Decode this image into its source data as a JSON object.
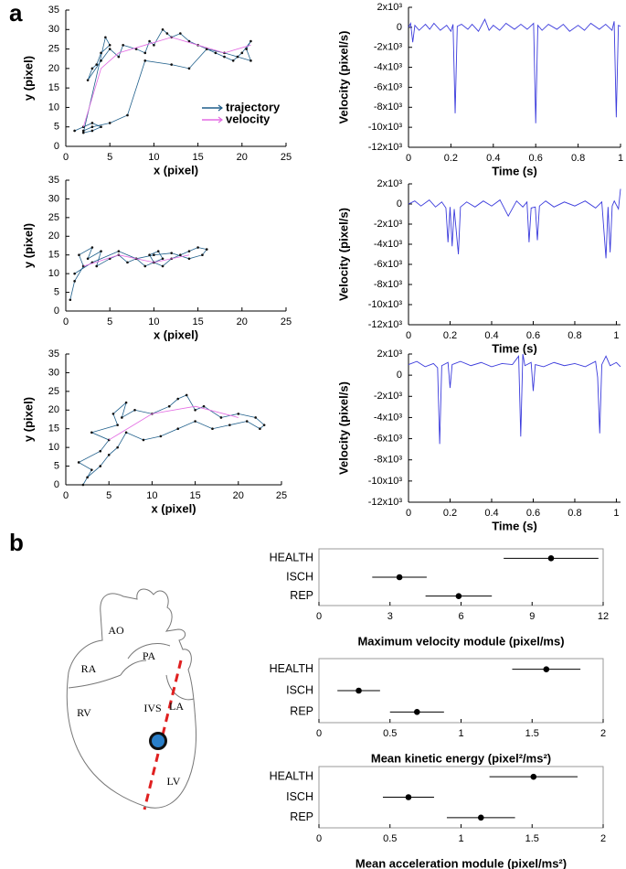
{
  "figure": {
    "panel_labels": [
      "a",
      "b"
    ],
    "heart_labels": [
      "AO",
      "PA",
      "RA",
      "RV",
      "IVS",
      "LA",
      "LV"
    ]
  },
  "chart_data": [
    {
      "type": "line",
      "xlabel": "x (pixel)",
      "ylabel": "y (pixel)",
      "xlim": [
        0,
        25
      ],
      "ylim": [
        0,
        35
      ],
      "xticks": [
        0,
        5,
        10,
        15,
        20,
        25
      ],
      "yticks": [
        0,
        5,
        10,
        15,
        20,
        25,
        30,
        35
      ],
      "markers": true,
      "legend": "lower right",
      "series": [
        {
          "name": "trajectory",
          "color": "#1f5f8b",
          "x": [
            1,
            2,
            3,
            4,
            3,
            2,
            4.5,
            5,
            4,
            3.5,
            3,
            2.5,
            4,
            5,
            6,
            6.5,
            8,
            9,
            9.5,
            10,
            11,
            11.5,
            12,
            13,
            14,
            15,
            16,
            17,
            18,
            19,
            20,
            21,
            20.5,
            21,
            19.5,
            18,
            16,
            14,
            12,
            9,
            7,
            5,
            3,
            2
          ],
          "values": [
            4,
            5,
            6,
            5,
            4,
            3.5,
            28,
            26,
            24,
            21,
            20,
            17,
            22,
            25,
            23,
            26,
            25,
            24,
            27,
            26,
            30,
            29,
            28,
            29,
            27,
            26,
            25,
            24,
            23,
            22,
            24,
            27,
            25,
            22,
            23,
            24,
            25,
            20,
            21,
            22,
            8,
            6,
            5,
            4
          ]
        },
        {
          "name": "velocity",
          "color": "#e36be3",
          "x": [
            2,
            4,
            6,
            9,
            12,
            15,
            18,
            21
          ],
          "values": [
            5,
            20,
            24,
            26,
            28,
            26,
            24,
            26
          ]
        }
      ]
    },
    {
      "type": "line",
      "xlabel": "Time (s)",
      "ylabel": "Velocity (pixel/s)",
      "xlim": [
        0,
        1
      ],
      "ylim": [
        -12000,
        2000
      ],
      "xticks": [
        0,
        0.2,
        0.4,
        0.6,
        0.8,
        1
      ],
      "yticks": [
        {
          "value": 2000,
          "label": "2x10³"
        },
        0,
        {
          "value": -2000,
          "label": "-2x10³"
        },
        {
          "value": -4000,
          "label": "-4x10³"
        },
        {
          "value": -6000,
          "label": "-6x10³"
        },
        {
          "value": -8000,
          "label": "-8x10³"
        },
        {
          "value": -10000,
          "label": "-10x10³"
        },
        {
          "value": -12000,
          "label": "-12x10³"
        }
      ],
      "series": [
        {
          "color": "#3b3bdc",
          "x": [
            0,
            0.01,
            0.02,
            0.03,
            0.05,
            0.08,
            0.1,
            0.12,
            0.15,
            0.18,
            0.2,
            0.21,
            0.22,
            0.23,
            0.25,
            0.28,
            0.3,
            0.33,
            0.36,
            0.38,
            0.4,
            0.43,
            0.46,
            0.5,
            0.53,
            0.56,
            0.59,
            0.6,
            0.61,
            0.63,
            0.66,
            0.7,
            0.73,
            0.76,
            0.8,
            0.83,
            0.86,
            0.9,
            0.93,
            0.96,
            0.97,
            0.98,
            0.99,
            1
          ],
          "values": [
            0,
            400,
            -1500,
            200,
            -300,
            300,
            -200,
            400,
            -300,
            200,
            -400,
            300,
            -8600,
            100,
            300,
            -200,
            300,
            -400,
            800,
            -300,
            200,
            -300,
            400,
            -200,
            300,
            -200,
            400,
            -9600,
            200,
            -300,
            300,
            -200,
            300,
            -400,
            200,
            -300,
            400,
            -200,
            300,
            -300,
            600,
            -9000,
            200,
            100
          ]
        }
      ]
    },
    {
      "type": "line",
      "xlabel": "x (pixel)",
      "ylabel": "y (pixel)",
      "xlim": [
        0,
        25
      ],
      "ylim": [
        0,
        35
      ],
      "xticks": [
        0,
        5,
        10,
        15,
        20,
        25
      ],
      "yticks": [
        0,
        5,
        10,
        15,
        20,
        25,
        30,
        35
      ],
      "markers": true,
      "series": [
        {
          "color": "#1f5f8b",
          "x": [
            0.5,
            1,
            2,
            1.5,
            3,
            2.5,
            4,
            3.5,
            5,
            6,
            7,
            8,
            9,
            10,
            11,
            10.5,
            9.5,
            10,
            11,
            12,
            13,
            14,
            15,
            16,
            15.5,
            14,
            12,
            10,
            8,
            6,
            3,
            1
          ],
          "values": [
            3,
            8,
            12,
            15,
            17,
            14,
            16,
            12,
            14,
            15,
            13,
            14,
            12,
            13,
            14,
            16,
            15,
            13,
            12,
            14,
            15,
            16,
            17,
            16.5,
            15,
            14,
            15.5,
            15,
            14,
            16,
            13,
            10
          ]
        },
        {
          "color": "#e36be3",
          "x": [
            2,
            6,
            10,
            14
          ],
          "values": [
            12,
            15,
            13,
            15
          ]
        }
      ]
    },
    {
      "type": "line",
      "xlabel": "Time (s)",
      "ylabel": "Velocity (pixel/s)",
      "xlim": [
        0,
        1.02
      ],
      "ylim": [
        -12000,
        2000
      ],
      "xticks": [
        0,
        0.2,
        0.4,
        0.6,
        0.8,
        1
      ],
      "yticks": [
        {
          "value": 2000,
          "label": "2x10³"
        },
        0,
        {
          "value": -2000,
          "label": "-2x10³"
        },
        {
          "value": -4000,
          "label": "-4x10³"
        },
        {
          "value": -6000,
          "label": "-6x10³"
        },
        {
          "value": -8000,
          "label": "-8x10³"
        },
        {
          "value": -10000,
          "label": "-10x10³"
        },
        {
          "value": -12000,
          "label": "-12x10³"
        }
      ],
      "series": [
        {
          "color": "#3b3bdc",
          "x": [
            0,
            0.03,
            0.06,
            0.1,
            0.13,
            0.16,
            0.18,
            0.19,
            0.2,
            0.21,
            0.22,
            0.24,
            0.25,
            0.28,
            0.32,
            0.36,
            0.4,
            0.44,
            0.48,
            0.52,
            0.55,
            0.57,
            0.58,
            0.59,
            0.61,
            0.62,
            0.63,
            0.66,
            0.7,
            0.75,
            0.8,
            0.85,
            0.9,
            0.93,
            0.95,
            0.96,
            0.97,
            0.98,
            0.99,
            1.01,
            1.02
          ],
          "values": [
            0,
            300,
            -200,
            400,
            -300,
            200,
            -400,
            -3800,
            -300,
            -4200,
            -500,
            -5000,
            -300,
            200,
            -300,
            300,
            -200,
            400,
            -1200,
            300,
            -300,
            200,
            -3800,
            -400,
            -300,
            -3600,
            -200,
            300,
            -300,
            200,
            -200,
            300,
            -400,
            200,
            -5400,
            -300,
            -4800,
            -200,
            300,
            -500,
            1500
          ]
        }
      ]
    },
    {
      "type": "line",
      "xlabel": "x (pixel)",
      "ylabel": "y (pixel)",
      "xlim": [
        0,
        25
      ],
      "ylim": [
        0,
        35
      ],
      "xticks": [
        0,
        5,
        10,
        15,
        20,
        25
      ],
      "yticks": [
        0,
        5,
        10,
        15,
        20,
        25,
        30,
        35
      ],
      "markers": true,
      "series": [
        {
          "color": "#1f5f8b",
          "x": [
            2,
            3,
            1.5,
            4,
            5,
            3,
            6,
            5.5,
            7,
            6.5,
            8,
            10,
            12,
            13,
            14,
            15,
            16,
            18,
            20,
            22,
            23,
            22.5,
            21,
            19,
            17,
            15,
            13,
            11,
            9,
            7,
            6,
            5,
            4,
            2.5
          ],
          "values": [
            0,
            4,
            6,
            9,
            12,
            14,
            16,
            19,
            22,
            18,
            20,
            19,
            21,
            23,
            24,
            20,
            21,
            18,
            19,
            18,
            16,
            15,
            17,
            16,
            15,
            17,
            15,
            13,
            12,
            14,
            10,
            8,
            5,
            2
          ]
        },
        {
          "color": "#e36be3",
          "x": [
            5,
            10,
            15,
            20
          ],
          "values": [
            12,
            19,
            21,
            18
          ]
        }
      ]
    },
    {
      "type": "line",
      "xlabel": "Time (s)",
      "ylabel": "Velocity (pixel/s)",
      "xlim": [
        0,
        1.02
      ],
      "ylim": [
        -12000,
        2000
      ],
      "xticks": [
        0,
        0.2,
        0.4,
        0.6,
        0.8,
        1
      ],
      "yticks": [
        {
          "value": 2000,
          "label": "2x10³"
        },
        0,
        {
          "value": -2000,
          "label": "-2x10³"
        },
        {
          "value": -4000,
          "label": "-4x10³"
        },
        {
          "value": -6000,
          "label": "-6x10³"
        },
        {
          "value": -8000,
          "label": "-8x10³"
        },
        {
          "value": -10000,
          "label": "-10x10³"
        },
        {
          "value": -12000,
          "label": "-12x10³"
        }
      ],
      "series": [
        {
          "color": "#3b3bdc",
          "x": [
            0,
            0.04,
            0.08,
            0.12,
            0.14,
            0.15,
            0.16,
            0.19,
            0.2,
            0.21,
            0.25,
            0.3,
            0.35,
            0.4,
            0.45,
            0.5,
            0.53,
            0.54,
            0.55,
            0.56,
            0.59,
            0.6,
            0.61,
            0.65,
            0.7,
            0.75,
            0.8,
            0.85,
            0.9,
            0.91,
            0.92,
            0.93,
            0.95,
            0.97,
            1,
            1.02
          ],
          "values": [
            1000,
            1300,
            800,
            1100,
            700,
            -6500,
            900,
            1200,
            -1200,
            1000,
            1300,
            900,
            1200,
            800,
            1100,
            1000,
            1800,
            -5800,
            2000,
            900,
            1200,
            -1500,
            1000,
            800,
            1200,
            900,
            1100,
            800,
            1300,
            -200,
            -5500,
            1000,
            1800,
            900,
            1200,
            800
          ]
        }
      ]
    },
    {
      "type": "dot",
      "xlabel": "Maximum velocity module (pixel/ms)",
      "categories": [
        "HEALTH",
        "ISCH",
        "REP"
      ],
      "values": [
        9.8,
        3.4,
        5.9
      ],
      "errors": [
        2.0,
        1.15,
        1.4
      ],
      "color": "#000000",
      "xlim": [
        0,
        12
      ],
      "xticks": [
        0,
        3,
        6,
        9,
        12
      ]
    },
    {
      "type": "dot",
      "xlabel": "Mean kinetic energy (pixel²/ms²)",
      "categories": [
        "HEALTH",
        "ISCH",
        "REP"
      ],
      "values": [
        1.6,
        0.28,
        0.69
      ],
      "errors": [
        0.24,
        0.15,
        0.19
      ],
      "color": "#000000",
      "xlim": [
        0,
        2
      ],
      "xticks": [
        0,
        0.5,
        1,
        1.5,
        2
      ]
    },
    {
      "type": "dot",
      "xlabel": "Mean acceleration module (pixel/ms²)",
      "categories": [
        "HEALTH",
        "ISCH",
        "REP"
      ],
      "values": [
        1.51,
        0.63,
        1.14
      ],
      "errors": [
        0.31,
        0.18,
        0.24
      ],
      "color": "#000000",
      "xlim": [
        0,
        2
      ],
      "xticks": [
        0,
        0.5,
        1,
        1.5,
        2
      ]
    }
  ]
}
